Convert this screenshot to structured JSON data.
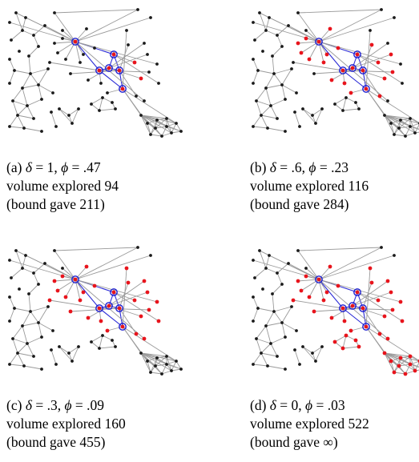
{
  "figure": {
    "panels": [
      {
        "id": "a",
        "label": "(a)",
        "delta": "1",
        "phi": ".47",
        "volume_text": "volume explored 94",
        "bound_text": "(bound gave 211)",
        "red_level": 1
      },
      {
        "id": "b",
        "label": "(b)",
        "delta": ".6",
        "phi": ".23",
        "volume_text": "volume explored 116",
        "bound_text": "(bound gave 284)",
        "red_level": 2
      },
      {
        "id": "c",
        "label": "(c)",
        "delta": ".3",
        "phi": ".09",
        "volume_text": "volume explored 160",
        "bound_text": "(bound gave 455)",
        "red_level": 3
      },
      {
        "id": "d",
        "label": "(d)",
        "delta": "0",
        "phi": ".03",
        "volume_text": "volume explored 522",
        "bound_text": "(bound gave ∞)",
        "red_level": 4
      }
    ],
    "symbols": {
      "delta": "δ",
      "phi": "ϕ",
      "equals": " = ",
      "comma": ", "
    },
    "colors": {
      "edge": "#9a9a9a",
      "node_default": "#1a1a1a",
      "node_explored": "#e8141c",
      "seed_ring": "#1f1fd0",
      "seed_edge": "#2b2bd6"
    }
  }
}
